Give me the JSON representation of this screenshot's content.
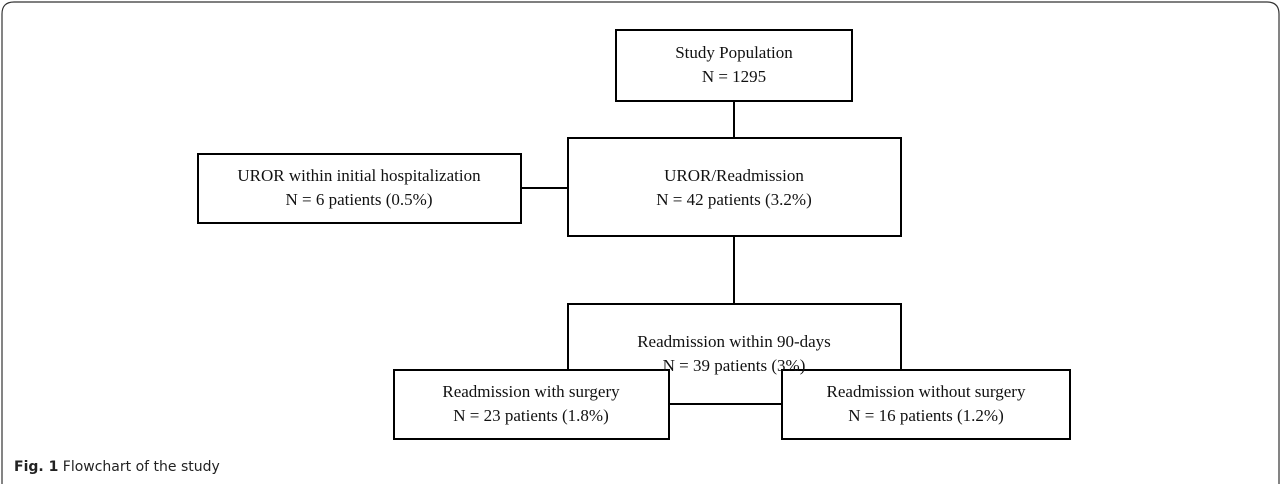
{
  "nodes": [
    {
      "label": "Study Population",
      "detail": "N = 1295"
    },
    {
      "label": "UROR/Readmission",
      "detail": "N = 42 patients (3.2%)"
    },
    {
      "label": "UROR within initial hospitalization",
      "detail": "N = 6 patients (0.5%)"
    },
    {
      "label": "Readmission within 90-days",
      "detail": "N = 39 patients (3%)"
    },
    {
      "label": "Readmission with surgery",
      "detail": "N = 23 patients (1.8%)"
    },
    {
      "label": "Readmission without surgery",
      "detail": "N = 16 patients (1.2%)"
    }
  ],
  "caption": {
    "label": "Fig. 1",
    "text": "Flowchart of the study"
  }
}
